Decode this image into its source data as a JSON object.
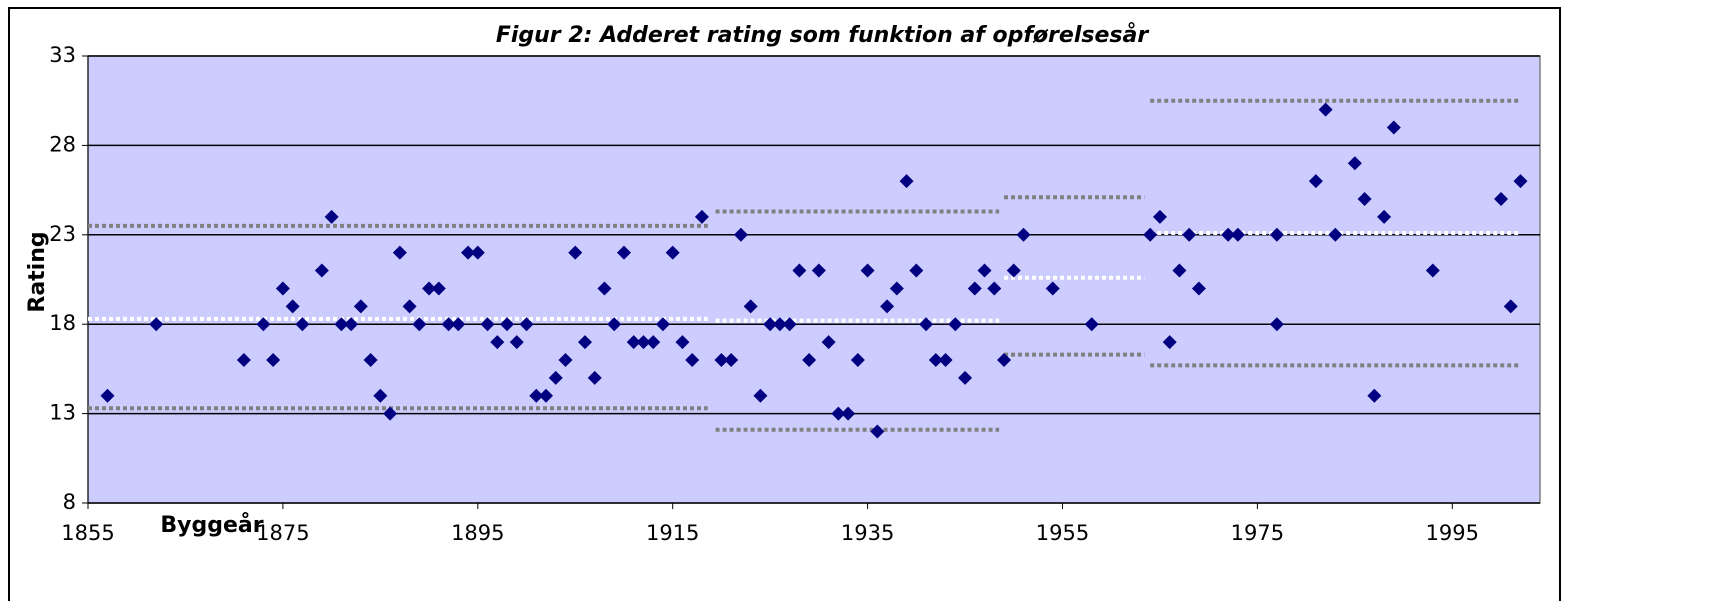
{
  "chart_data": {
    "type": "scatter",
    "title": "Figur 2: Adderet rating som funktion af opførelsesår",
    "x_label": "Byggeår",
    "y_label": "Rating",
    "xlim": [
      1855,
      2004
    ],
    "xticks": [
      1855,
      1875,
      1895,
      1915,
      1935,
      1955,
      1975,
      1995
    ],
    "ylim": [
      8,
      33
    ],
    "yticks": [
      8,
      13,
      18,
      23,
      28,
      33
    ],
    "grid": true,
    "color": "#000080",
    "x": [
      1857,
      1862,
      1871,
      1873,
      1874,
      1875,
      1876,
      1877,
      1879,
      1880,
      1881,
      1882,
      1883,
      1884,
      1885,
      1886,
      1887,
      1888,
      1889,
      1890,
      1891,
      1892,
      1893,
      1894,
      1895,
      1896,
      1897,
      1898,
      1899,
      1900,
      1901,
      1902,
      1903,
      1904,
      1905,
      1906,
      1907,
      1908,
      1909,
      1910,
      1911,
      1912,
      1913,
      1914,
      1915,
      1916,
      1917,
      1918,
      1920,
      1921,
      1922,
      1923,
      1924,
      1925,
      1926,
      1927,
      1928,
      1929,
      1930,
      1931,
      1932,
      1933,
      1934,
      1935,
      1936,
      1937,
      1938,
      1939,
      1940,
      1941,
      1942,
      1943,
      1944,
      1945,
      1946,
      1947,
      1948,
      1949,
      1950,
      1951,
      1954,
      1958,
      1964,
      1965,
      1966,
      1967,
      1968,
      1969,
      1972,
      1973,
      1977,
      1977,
      1981,
      1982,
      1983,
      1985,
      1986,
      1987,
      1988,
      1989,
      1993,
      2000,
      2001,
      2002
    ],
    "values": [
      14,
      18,
      16,
      18,
      16,
      20,
      19,
      18,
      21,
      24,
      18,
      18,
      19,
      16,
      14,
      13,
      22,
      19,
      18,
      20,
      20,
      18,
      18,
      22,
      22,
      18,
      17,
      18,
      17,
      18,
      14,
      14,
      15,
      16,
      22,
      17,
      15,
      20,
      18,
      22,
      17,
      17,
      17,
      18,
      22,
      17,
      16,
      24,
      16,
      16,
      23,
      19,
      14,
      18,
      18,
      18,
      21,
      16,
      21,
      17,
      13,
      13,
      16,
      21,
      12,
      19,
      20,
      26,
      21,
      18,
      16,
      16,
      18,
      15,
      20,
      21,
      20,
      16,
      21,
      23,
      20,
      18,
      23,
      24,
      17,
      21,
      23,
      20,
      23,
      23,
      18,
      23,
      26,
      30,
      23,
      27,
      25,
      14,
      24,
      29,
      21,
      25,
      19,
      26
    ],
    "reference_lines": [
      {
        "x": [
          1855,
          1918.6
        ],
        "mean": 18.3,
        "upper": 23.5,
        "lower": 13.3
      },
      {
        "x": [
          1919.4,
          1948.5
        ],
        "mean": 18.2,
        "upper": 24.3,
        "lower": 12.1
      },
      {
        "x": [
          1949,
          1963.4
        ],
        "mean": 20.6,
        "upper": 25.1,
        "lower": 16.3
      },
      {
        "x": [
          1964,
          2002
        ],
        "mean": 23.1,
        "upper": 30.5,
        "lower": 15.7
      }
    ],
    "mean_color": "#ffffff",
    "band_color": "#808080"
  }
}
